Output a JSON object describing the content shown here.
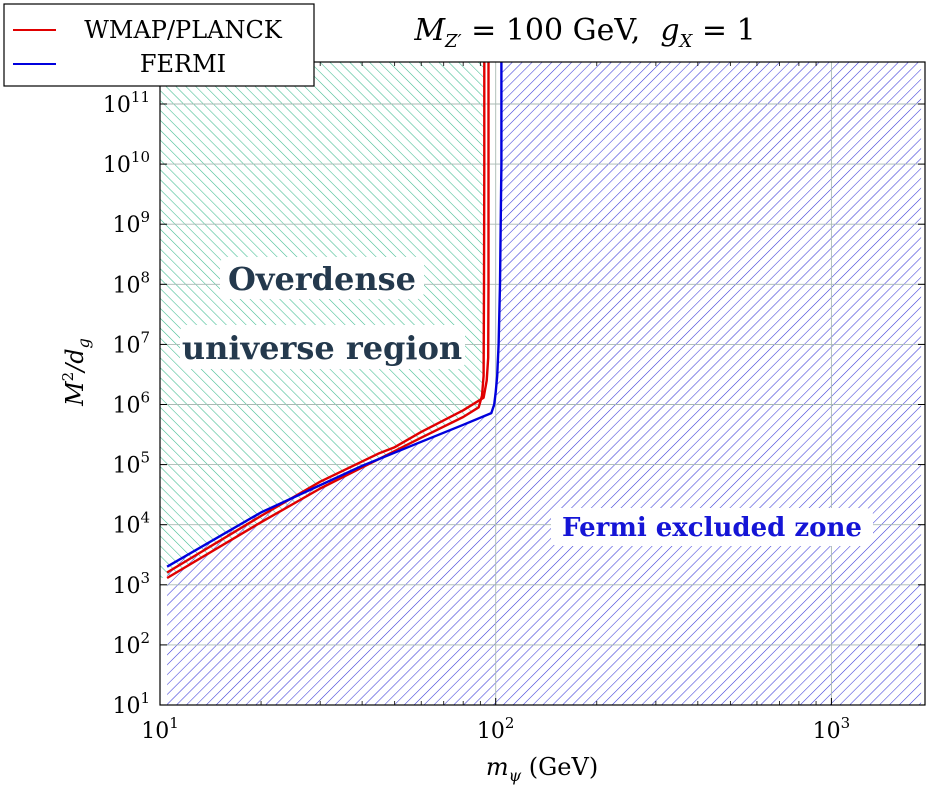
{
  "chart_data": {
    "type": "line",
    "title": "M_{Z'} = 100 GeV,   g_X = 1",
    "title_parts": {
      "mass": "M",
      "mass_sub": "Z′",
      "mass_value": " = 100 GeV,",
      "coupling": "g",
      "coupling_sub": "X",
      "coupling_value": " = 1"
    },
    "xlabel": "m_ψ (GeV)",
    "xlabel_parts": {
      "sym": "m",
      "sub": "ψ",
      "unit": " (GeV)"
    },
    "ylabel": "M²/d_g",
    "ylabel_parts": {
      "sym": "M",
      "sup": "2",
      "slash": "/d",
      "sub": "g"
    },
    "xscale": "log",
    "yscale": "log",
    "xlim": [
      10,
      1900
    ],
    "ylim": [
      10,
      500000000000
    ],
    "x_ticks": [
      {
        "base": "10",
        "exp": "1",
        "value": 10
      },
      {
        "base": "10",
        "exp": "2",
        "value": 100
      },
      {
        "base": "10",
        "exp": "3",
        "value": 1000
      }
    ],
    "y_ticks": [
      {
        "base": "10",
        "exp": "1",
        "value": 10
      },
      {
        "base": "10",
        "exp": "2",
        "value": 100
      },
      {
        "base": "10",
        "exp": "3",
        "value": 1000
      },
      {
        "base": "10",
        "exp": "4",
        "value": 10000
      },
      {
        "base": "10",
        "exp": "5",
        "value": 100000
      },
      {
        "base": "10",
        "exp": "6",
        "value": 1000000
      },
      {
        "base": "10",
        "exp": "7",
        "value": 10000000
      },
      {
        "base": "10",
        "exp": "8",
        "value": 100000000
      },
      {
        "base": "10",
        "exp": "9",
        "value": 1000000000
      },
      {
        "base": "10",
        "exp": "10",
        "value": 10000000000
      },
      {
        "base": "10",
        "exp": "11",
        "value": 100000000000
      }
    ],
    "grid": true,
    "legend": {
      "position": "top-left",
      "entries": [
        "WMAP/PLANCK",
        "FERMI"
      ]
    },
    "series": [
      {
        "name": "WMAP/PLANCK",
        "color": "#e00000",
        "x": [
          10.5,
          20,
          30,
          45,
          60,
          80,
          89,
          91,
          92,
          92.3,
          92.5,
          92.5
        ],
        "y": [
          1300,
          11000,
          40000,
          125000,
          280000,
          620000,
          900000,
          1400000,
          3000000,
          100000000,
          10000000000,
          500000000000
        ]
      },
      {
        "name": "WMAP/PLANCK",
        "color": "#e00000",
        "x": [
          10.5,
          20,
          30,
          45,
          50,
          60,
          80,
          92,
          94,
          95,
          95.2,
          95.2
        ],
        "y": [
          1600,
          14000,
          52000,
          155000,
          195000,
          350000,
          800000,
          1300000,
          2500000,
          6000000,
          100000000,
          500000000000
        ]
      },
      {
        "name": "FERMI",
        "color": "#0000dd",
        "x": [
          10.5,
          20,
          40,
          60,
          80,
          97,
          99,
          100,
          101,
          102,
          103,
          104,
          104
        ],
        "y": [
          2000,
          16000,
          95000,
          240000,
          460000,
          720000,
          1000000,
          1600000,
          3000000,
          10000000,
          100000000,
          10000000000,
          500000000000
        ]
      }
    ],
    "regions": [
      {
        "name": "Overdense universe region",
        "color": "#2fb38a"
      },
      {
        "name": "Fermi excluded zone",
        "color": "#2b2bd6"
      }
    ],
    "annotations": [
      {
        "text": "Overdense",
        "color": "#24394d",
        "x": 22,
        "y": 150000000
      },
      {
        "text": "universe region",
        "color": "#24394d",
        "x": 22,
        "y": 10000000
      },
      {
        "text": "Fermi excluded zone",
        "color": "#1515d6",
        "x": 350,
        "y": 10000
      }
    ]
  }
}
